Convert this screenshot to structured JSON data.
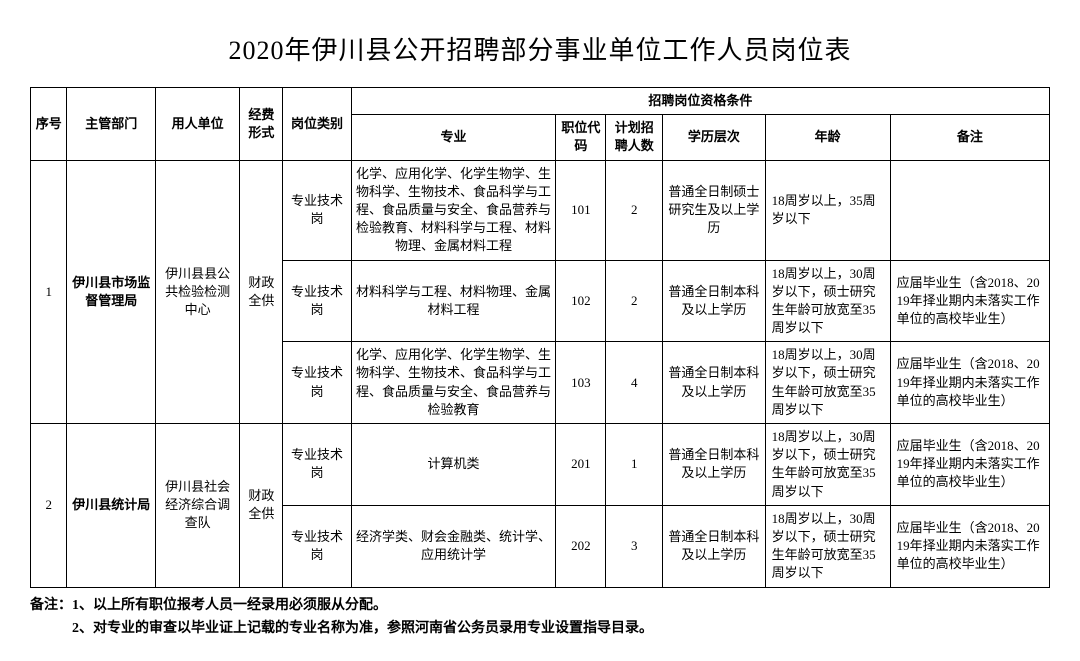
{
  "title": "2020年伊川县公开招聘部分事业单位工作人员岗位表",
  "headers": {
    "seq": "序号",
    "dept": "主管部门",
    "employer": "用人单位",
    "funding": "经费形式",
    "postType": "岗位类别",
    "qualGroup": "招聘岗位资格条件",
    "major": "专业",
    "code": "职位代码",
    "count": "计划招聘人数",
    "edu": "学历层次",
    "age": "年龄",
    "note": "备注"
  },
  "groups": [
    {
      "seq": "1",
      "dept": "伊川县市场监督管理局",
      "employer": "伊川县县公共检验检测中心",
      "funding": "财政全供",
      "rows": [
        {
          "postType": "专业技术岗",
          "major": "化学、应用化学、化学生物学、生物科学、生物技术、食品科学与工程、食品质量与安全、食品营养与检验教育、材料科学与工程、材料物理、金属材料工程",
          "code": "101",
          "count": "2",
          "edu": "普通全日制硕士研究生及以上学历",
          "age": "18周岁以上，35周岁以下",
          "note": ""
        },
        {
          "postType": "专业技术岗",
          "major": "材料科学与工程、材料物理、金属材料工程",
          "code": "102",
          "count": "2",
          "edu": "普通全日制本科及以上学历",
          "age": "18周岁以上，30周岁以下，硕士研究生年龄可放宽至35周岁以下",
          "note": "应届毕业生（含2018、2019年择业期内未落实工作单位的高校毕业生）"
        },
        {
          "postType": "专业技术岗",
          "major": "化学、应用化学、化学生物学、生物科学、生物技术、食品科学与工程、食品质量与安全、食品营养与检验教育",
          "code": "103",
          "count": "4",
          "edu": "普通全日制本科及以上学历",
          "age": "18周岁以上，30周岁以下，硕士研究生年龄可放宽至35周岁以下",
          "note": "应届毕业生（含2018、2019年择业期内未落实工作单位的高校毕业生）"
        }
      ]
    },
    {
      "seq": "2",
      "dept": "伊川县统计局",
      "employer": "伊川县社会经济综合调查队",
      "funding": "财政全供",
      "rows": [
        {
          "postType": "专业技术岗",
          "major": "计算机类",
          "code": "201",
          "count": "1",
          "edu": "普通全日制本科及以上学历",
          "age": "18周岁以上，30周岁以下，硕士研究生年龄可放宽至35周岁以下",
          "note": "应届毕业生（含2018、2019年择业期内未落实工作单位的高校毕业生）"
        },
        {
          "postType": "专业技术岗",
          "major": "经济学类、财会金融类、统计学、应用统计学",
          "code": "202",
          "count": "3",
          "edu": "普通全日制本科及以上学历",
          "age": "18周岁以上，30周岁以下，硕士研究生年龄可放宽至35周岁以下",
          "note": "应届毕业生（含2018、2019年择业期内未落实工作单位的高校毕业生）"
        }
      ]
    }
  ],
  "footnotes": [
    "备注：1、以上所有职位报考人员一经录用必须服从分配。",
    "　　　2、对专业的审查以毕业证上记载的专业名称为准，参照河南省公务员录用专业设置指导目录。"
  ]
}
